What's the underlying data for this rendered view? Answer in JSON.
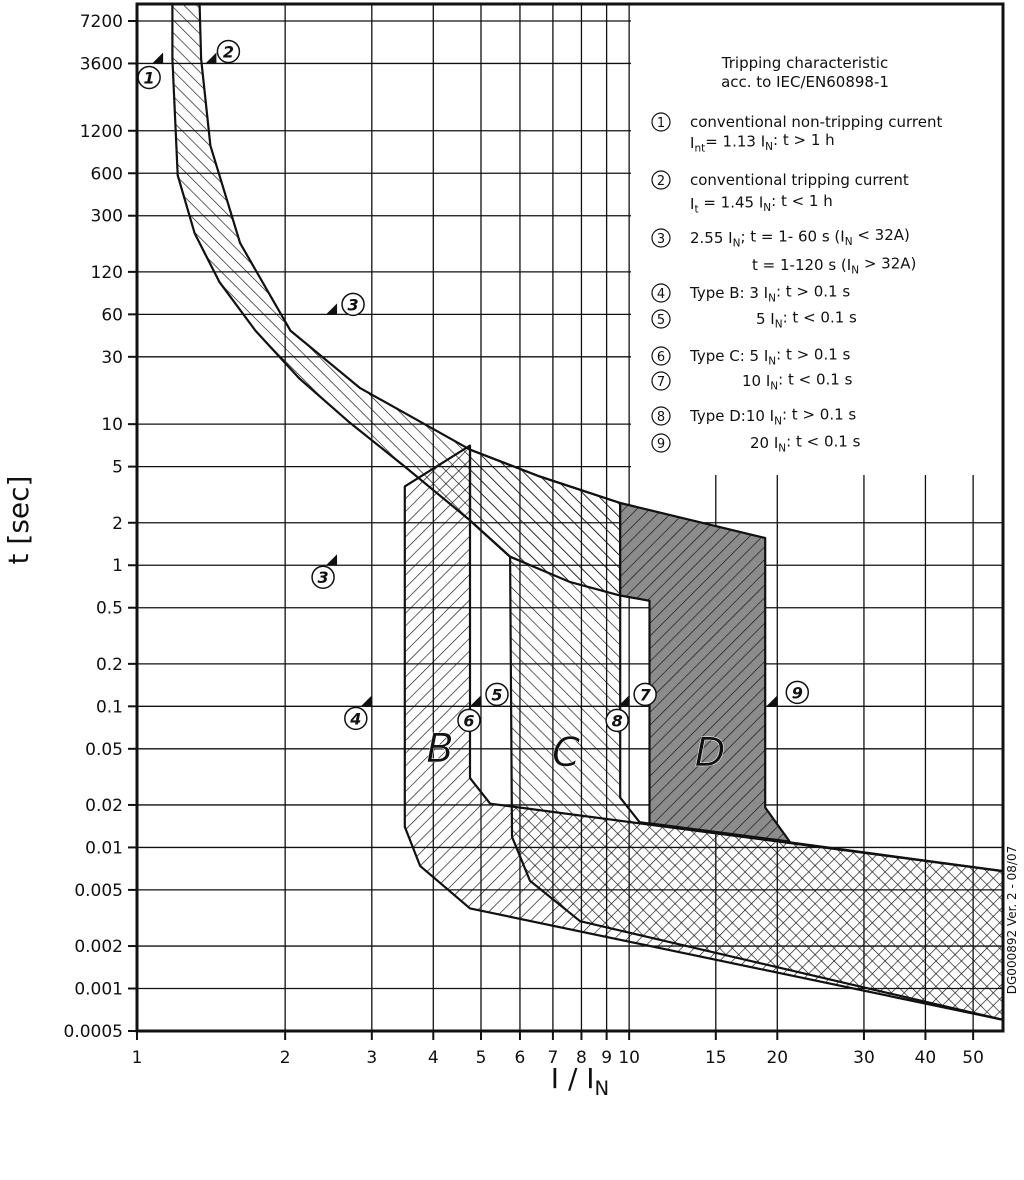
{
  "chart_data": {
    "type": "area",
    "xlabel": [
      "I / I",
      "N"
    ],
    "ylabel": "t [sec]",
    "side_note": "DG000892 Ver. 2 - 08/07",
    "log_x": true,
    "log_y": true,
    "grid": true,
    "xlim": [
      1,
      57.5
    ],
    "ylim": [
      0.0005,
      9500
    ],
    "xticks": [
      1,
      2,
      3,
      4,
      5,
      6,
      7,
      8,
      9,
      10,
      15,
      20,
      30,
      40,
      50
    ],
    "yticks": [
      0.0005,
      0.001,
      0.002,
      0.005,
      0.01,
      0.02,
      0.05,
      0.1,
      0.2,
      0.5,
      1,
      2,
      5,
      10,
      30,
      60,
      120,
      300,
      600,
      1200,
      3600,
      7200
    ],
    "series": [
      {
        "hatch": "back",
        "x": [
          1.34,
          1.35,
          1.41,
          1.62,
          2.05,
          2.84,
          4.75,
          6.59,
          9.59,
          9.59,
          7.59,
          5.73,
          4.75,
          3.5,
          2.71,
          2.14,
          1.74,
          1.47,
          1.31,
          1.21,
          1.18,
          1.18
        ],
        "values": [
          9500,
          3900,
          940,
          192,
          46,
          18,
          6.6,
          4.25,
          2.76,
          0.61,
          0.76,
          1.15,
          2.08,
          5.0,
          10.2,
          21,
          46,
          102,
          225,
          580,
          3900,
          9500
        ]
      },
      {
        "name": "B",
        "hatch": "forward",
        "x": [
          3.5,
          3.5,
          3.76,
          4.75,
          57.5,
          57.5,
          5.22,
          4.75,
          4.75
        ],
        "values": [
          3.62,
          0.014,
          0.0074,
          0.0037,
          0.0006,
          0.0068,
          0.0204,
          0.031,
          7.05
        ]
      },
      {
        "name": "C",
        "hatch": "back",
        "x": [
          4.75,
          6.59,
          9.59,
          9.59,
          10.5,
          57.5,
          57.5,
          7.95,
          6.29,
          5.78,
          5.73,
          4.75
        ],
        "values": [
          6.6,
          4.25,
          2.76,
          0.0225,
          0.0151,
          0.0068,
          0.0006,
          0.003,
          0.0058,
          0.0119,
          1.15,
          2.08
        ]
      },
      {
        "name": "D",
        "hatch": "forward",
        "color": "#8c8c8c",
        "x": [
          9.59,
          18.9,
          18.9,
          21.2,
          11.0,
          11.0,
          9.59
        ],
        "values": [
          2.76,
          1.56,
          0.0192,
          0.011,
          0.0148,
          0.56,
          0.61
        ]
      }
    ],
    "markers": [
      {
        "label": "1",
        "x": 1.13,
        "y": 3600
      },
      {
        "label": "2",
        "x": 1.45,
        "y": 3600
      },
      {
        "label": "3",
        "x": 2.55,
        "y": 60
      },
      {
        "label": "3",
        "x": 2.55,
        "y": 1
      },
      {
        "label": "4",
        "x": 3,
        "y": 0.1
      },
      {
        "label": "5",
        "x": 5,
        "y": 0.1
      },
      {
        "label": "6",
        "x": 5,
        "y": 0.1
      },
      {
        "label": "7",
        "x": 10,
        "y": 0.1
      },
      {
        "label": "8",
        "x": 10,
        "y": 0.1
      },
      {
        "label": "9",
        "x": 20,
        "y": 0.1
      }
    ],
    "legend": {
      "title": [
        "Tripping characteristic",
        "acc. to IEC/EN60898-1"
      ],
      "items": [
        {
          "label": "1",
          "lines": [
            [
              "conventional non-tripping current"
            ],
            [
              "I",
              "nt",
              "= 1.13 I",
              "N",
              ": t > 1 h"
            ]
          ]
        },
        {
          "label": "2",
          "lines": [
            [
              "conventional tripping current"
            ],
            [
              "I",
              "t",
              " = 1.45 I",
              "N",
              ": t < 1 h"
            ]
          ]
        },
        {
          "label": "3",
          "lines": [
            [
              "2.55 I",
              "N",
              "; t = 1- 60 s (I",
              "N",
              " < 32A)"
            ],
            [
              "t = 1-120 s (I",
              "N",
              " > 32A)"
            ]
          ]
        },
        {
          "label": "4",
          "lines": [
            [
              "Type B: 3 I",
              "N",
              ": t > 0.1 s"
            ]
          ]
        },
        {
          "label": "5",
          "lines": [
            [
              "5 I",
              "N",
              ": t < 0.1 s"
            ]
          ]
        },
        {
          "label": "6",
          "lines": [
            [
              "Type C: 5 I",
              "N",
              ": t > 0.1 s"
            ]
          ]
        },
        {
          "label": "7",
          "lines": [
            [
              "10 I",
              "N",
              ": t < 0.1 s"
            ]
          ]
        },
        {
          "label": "8",
          "lines": [
            [
              "Type D:10 I",
              "N",
              ": t > 0.1 s"
            ]
          ]
        },
        {
          "label": "9",
          "lines": [
            [
              "20 I",
              "N",
              ": t < 0.1 s"
            ]
          ]
        }
      ]
    }
  }
}
